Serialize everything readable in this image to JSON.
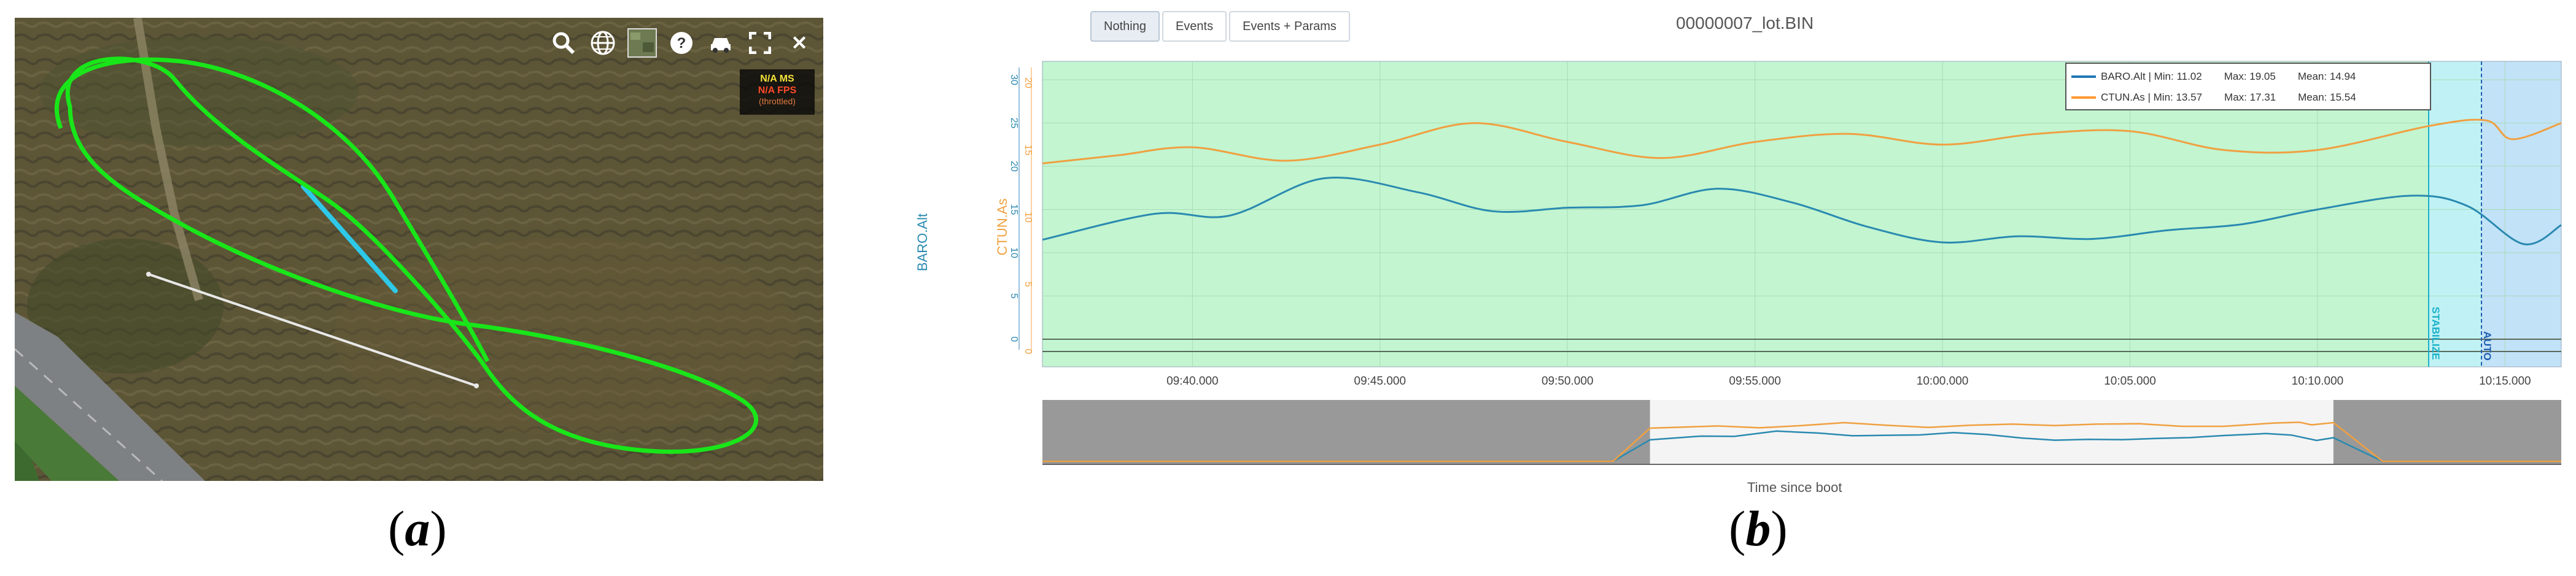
{
  "labels": {
    "a": "a",
    "b": "b"
  },
  "map": {
    "toolbar": {
      "search": "search-icon",
      "globe": "globe-icon",
      "layers": "satellite-layer-icon",
      "help": "?",
      "vehicle": "car-icon",
      "fullscreen": "fullscreen-icon",
      "close": "✕"
    },
    "perf": {
      "ms": "N/A MS",
      "fps": "N/A FPS",
      "throttled": "(throttled)"
    },
    "colors": {
      "track": "#19e619",
      "highlight": "#2ec9e8",
      "line": "#e8e8e8"
    }
  },
  "plot": {
    "buttons": [
      "Nothing",
      "Events",
      "Events + Params"
    ],
    "active_button": "Nothing",
    "title": "00000007_lot.BIN",
    "legend": [
      {
        "text": "BARO.Alt | Min: 11.02",
        "max": "Max: 19.05",
        "mean": "Mean: 14.94",
        "color": "#1f77b4"
      },
      {
        "text": "CTUN.As | Min: 13.57",
        "max": "Max: 17.31",
        "mean": "Mean: 15.54",
        "color": "#ff9933"
      }
    ],
    "xlabel": "Time since boot",
    "mode_labels": [
      "STABILIZE",
      "AUTO"
    ],
    "colors": {
      "baro": "#2a8ab0",
      "ctun": "#f0a040",
      "stabilize": "#c2f5d0",
      "auto1": "#c0f2f5",
      "auto2": "#c2e2f8"
    }
  },
  "chart_data": {
    "type": "line",
    "title": "00000007_lot.BIN",
    "xlabel": "Time since boot",
    "x_ticks": [
      "09:40.000",
      "09:45.000",
      "09:50.000",
      "09:55.000",
      "10:00.000",
      "10:05.000",
      "10:10.000",
      "10:15.000"
    ],
    "y_left_label": "BARO.Alt",
    "y_left_ticks": [
      "0",
      "5",
      "10",
      "15",
      "20",
      "25",
      "30"
    ],
    "y_right_label": "CTUN.As",
    "y_right_ticks": [
      "0",
      "5",
      "10",
      "15",
      "20"
    ],
    "series": [
      {
        "name": "BARO.Alt",
        "axis": "left",
        "x": [
          "09:36",
          "09:39",
          "09:41",
          "09:43.5",
          "09:46",
          "09:48",
          "09:50",
          "09:52",
          "09:54",
          "09:56",
          "09:58",
          "10:00",
          "10:02",
          "10:04",
          "10:06",
          "10:08",
          "10:10",
          "10:12.5",
          "10:14",
          "10:15.5",
          "10:16.5"
        ],
        "y": [
          11.5,
          14.5,
          14.3,
          18.6,
          17.0,
          14.8,
          15.2,
          15.5,
          17.4,
          15.8,
          13.0,
          11.2,
          11.9,
          11.6,
          12.6,
          13.3,
          15.0,
          16.6,
          15.4,
          11.0,
          13.2
        ]
      },
      {
        "name": "CTUN.As",
        "axis": "right",
        "x": [
          "09:36",
          "09:38",
          "09:40",
          "09:42.5",
          "09:45",
          "09:47.5",
          "09:50",
          "09:52.5",
          "09:55",
          "09:57.5",
          "10:00",
          "10:02.5",
          "10:05",
          "10:07.5",
          "10:10",
          "10:13",
          "10:14.5",
          "10:15.2",
          "10:16.5"
        ],
        "y": [
          14.0,
          14.6,
          15.2,
          14.2,
          15.4,
          17.0,
          15.6,
          14.4,
          15.6,
          16.2,
          15.4,
          16.2,
          16.4,
          15.0,
          15.0,
          16.8,
          17.2,
          15.8,
          17.0
        ]
      }
    ],
    "overview": {
      "x_range": [
        "09:00",
        "10:30"
      ],
      "highlight_range": [
        "09:36",
        "10:16.5"
      ]
    },
    "grid": true,
    "legend_position": "top-right"
  }
}
